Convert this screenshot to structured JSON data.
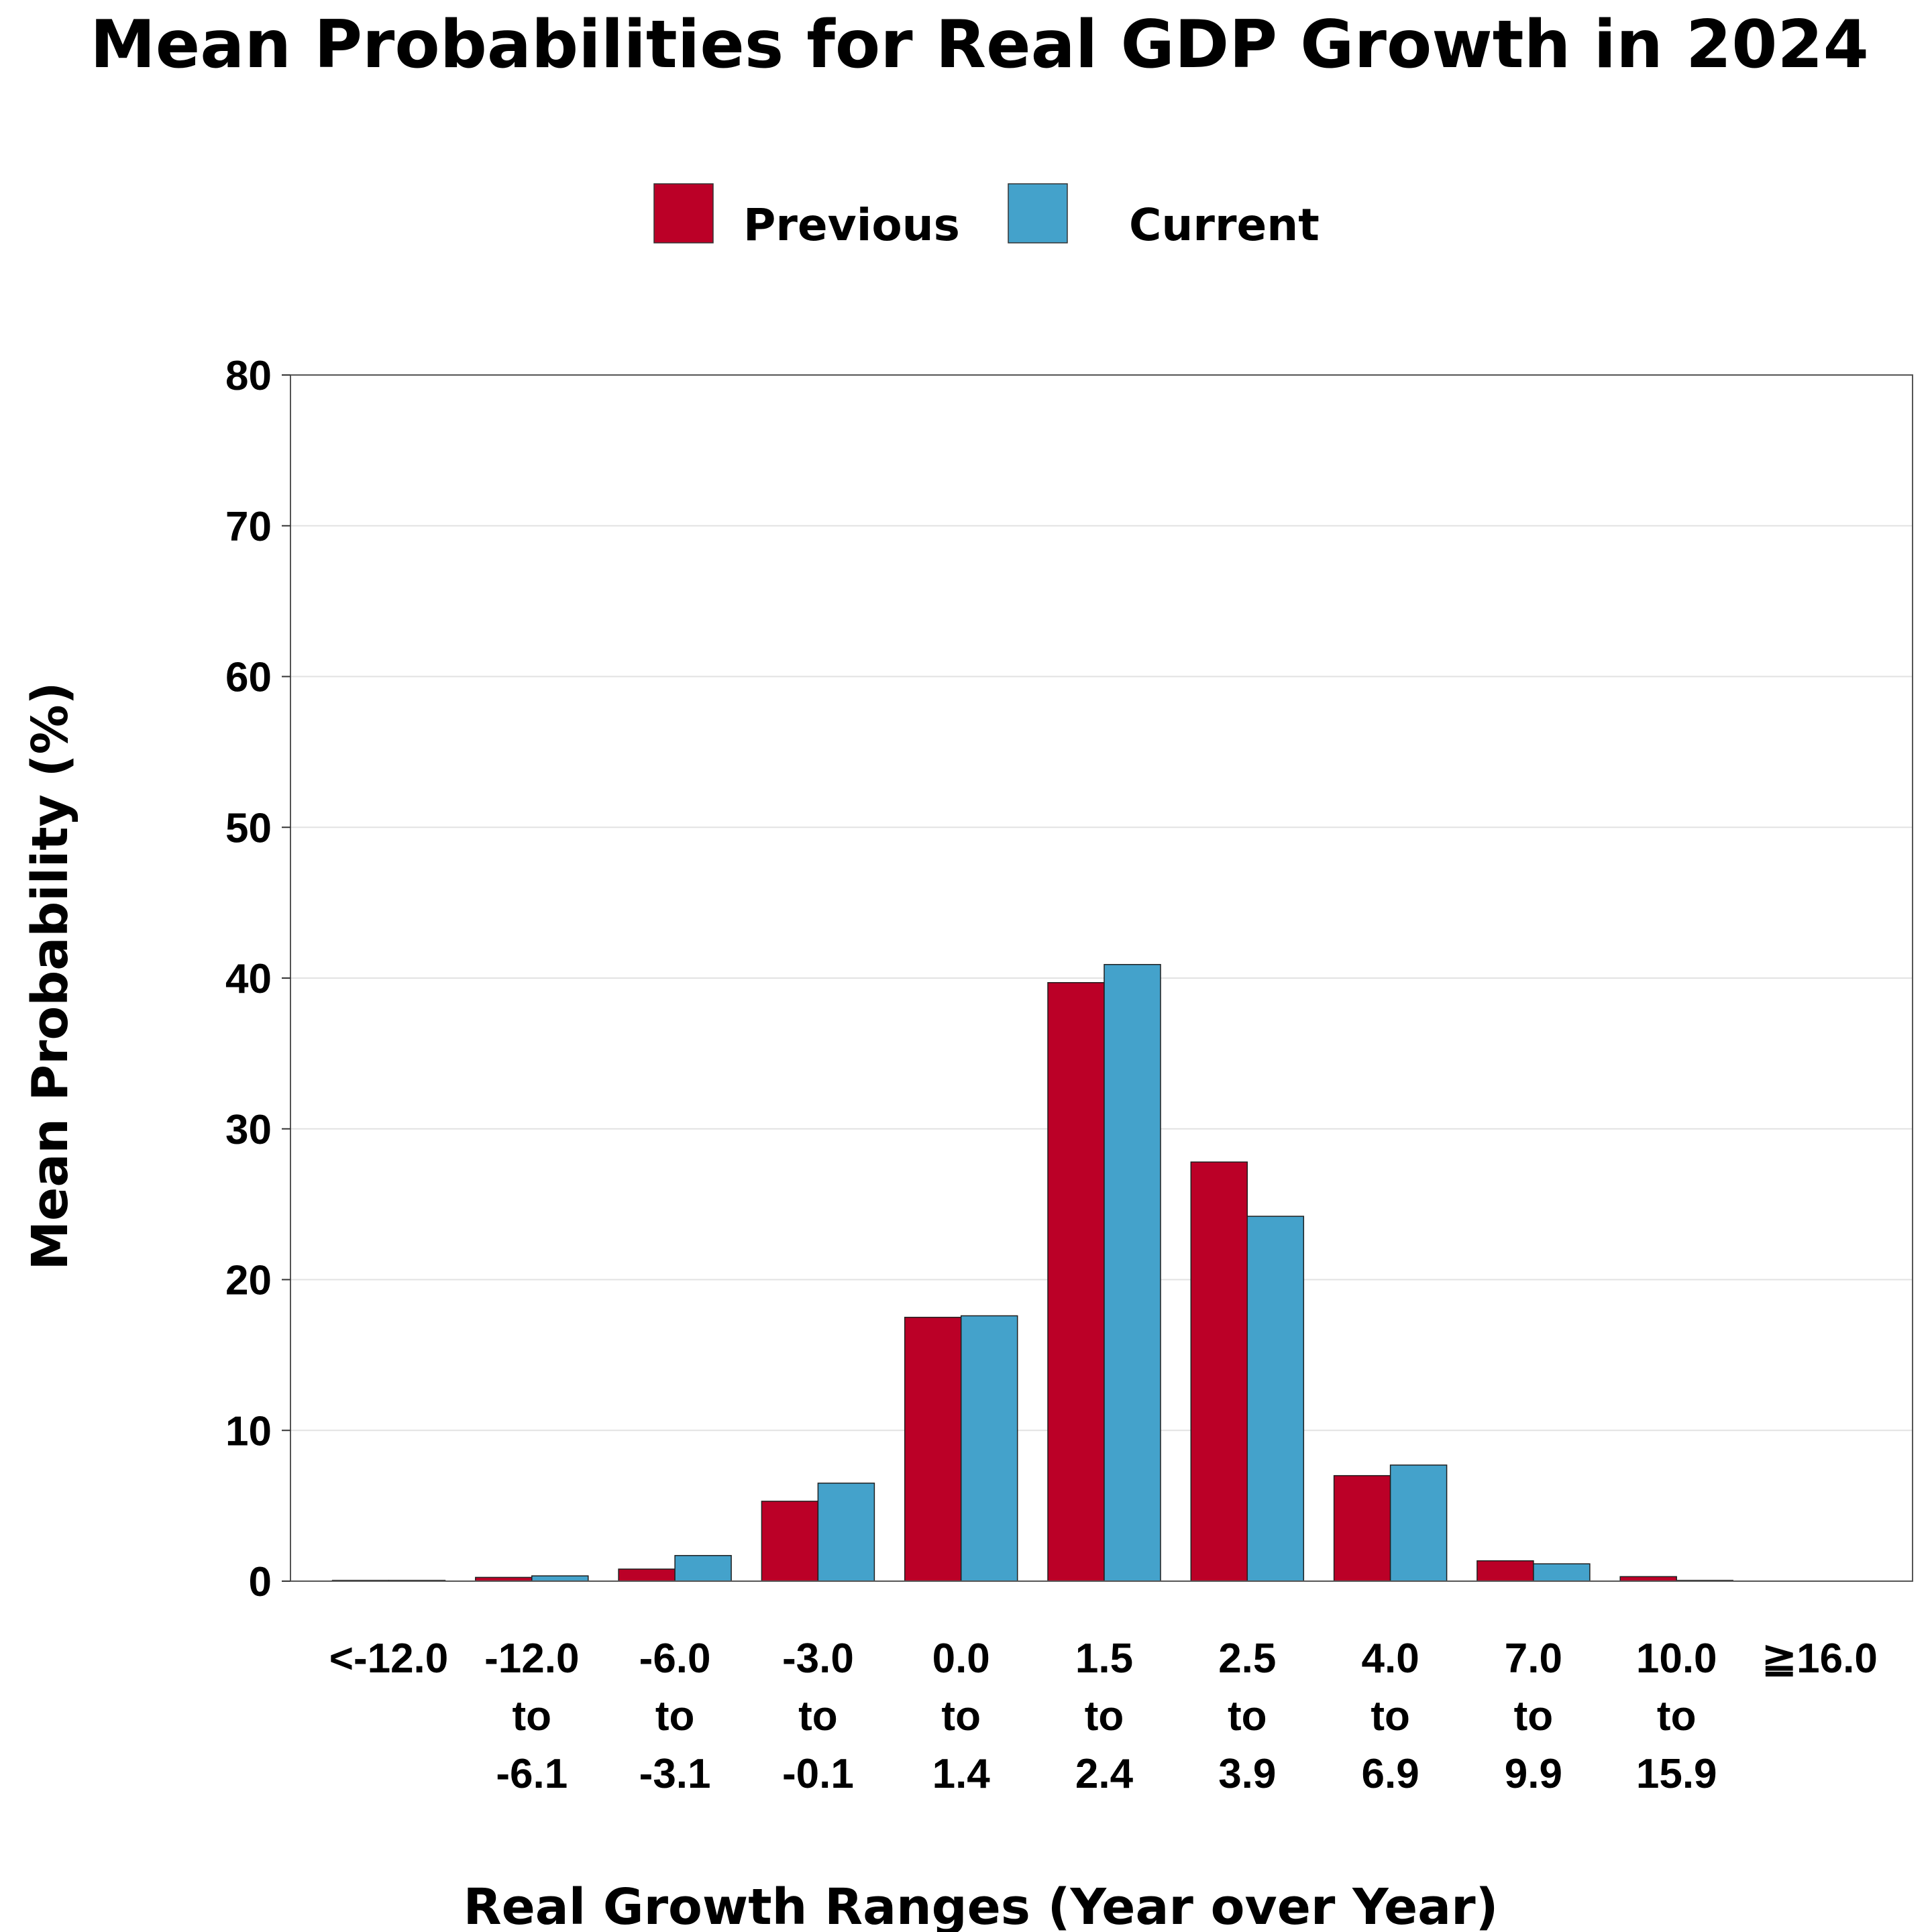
{
  "colors": {
    "previous": "#bb0027",
    "current": "#44a2cb",
    "grid": "#e2e2e2",
    "frame": "#555555"
  },
  "chart_data": {
    "type": "bar",
    "title": "Mean Probabilities for Real GDP Growth in 2024",
    "xlabel": "Real Growth Ranges (Year over Year)",
    "ylabel": "Mean Probability (%)",
    "ylim": [
      0,
      80
    ],
    "yticks": [
      "0",
      "10",
      "20",
      "30",
      "40",
      "50",
      "60",
      "70",
      "80"
    ],
    "grid": true,
    "legend": "top-center",
    "categories": [
      [
        "<-12.0"
      ],
      [
        "-12.0",
        "to",
        "-6.1"
      ],
      [
        "-6.0",
        "to",
        "-3.1"
      ],
      [
        "-3.0",
        "to",
        "-0.1"
      ],
      [
        "0.0",
        "to",
        "1.4"
      ],
      [
        "1.5",
        "to",
        "2.4"
      ],
      [
        "2.5",
        "to",
        "3.9"
      ],
      [
        "4.0",
        "to",
        "6.9"
      ],
      [
        "7.0",
        "to",
        "9.9"
      ],
      [
        "10.0",
        "to",
        "15.9"
      ],
      [
        "≧16.0"
      ]
    ],
    "series": [
      {
        "name": "Previous",
        "values": [
          0.05,
          0.25,
          0.8,
          5.3,
          17.5,
          39.7,
          27.8,
          7.0,
          1.35,
          0.3,
          0.0
        ]
      },
      {
        "name": "Current",
        "values": [
          0.05,
          0.35,
          1.7,
          6.5,
          17.6,
          40.9,
          24.2,
          7.7,
          1.15,
          0.05,
          0.0
        ]
      }
    ]
  }
}
